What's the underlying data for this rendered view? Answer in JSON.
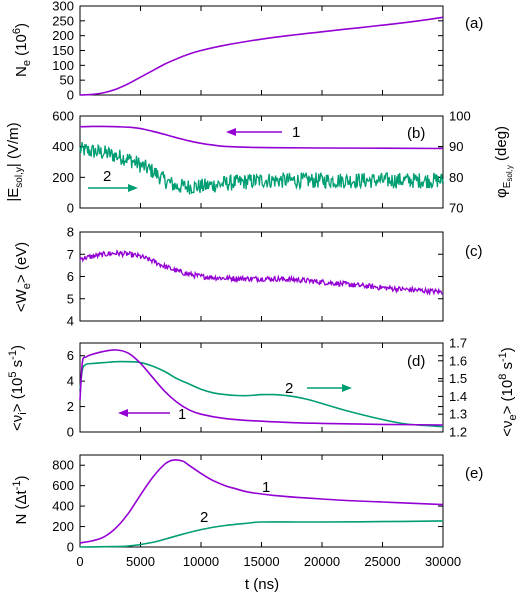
{
  "figure": {
    "xlabel": "t (ns)",
    "x_ticks": [
      "0",
      "5000",
      "10000",
      "15000",
      "20000",
      "25000",
      "30000"
    ],
    "colors": {
      "purple": "#9400d3",
      "green": "#009e73"
    }
  },
  "chart_data": [
    {
      "type": "line",
      "panel_label": "(a)",
      "ylabel_main": "N",
      "ylabel_sub": "e",
      "ylabel_tail": " (10",
      "ylabel_sup": "6",
      "ylabel_end": ")",
      "y_ticks": [
        "0",
        "50",
        "100",
        "150",
        "200",
        "250",
        "300"
      ],
      "ylim": [
        0,
        300
      ],
      "xlim": [
        0,
        30000
      ],
      "series": [
        {
          "x": [
            0,
            1000,
            2000,
            3000,
            4000,
            5000,
            6000,
            7000,
            8000,
            9000,
            10000,
            12000,
            14000,
            16000,
            18000,
            20000,
            22000,
            24000,
            26000,
            28000,
            30000
          ],
          "y": [
            0,
            2,
            8,
            20,
            38,
            60,
            82,
            104,
            122,
            138,
            150,
            168,
            182,
            194,
            204,
            213,
            222,
            231,
            240,
            250,
            262
          ]
        }
      ]
    },
    {
      "type": "line",
      "panel_label": "(b)",
      "ylabel_main": "|E",
      "ylabel_sub": "sol,y",
      "ylabel_end": "| (V/m)",
      "y_ticks": [
        "0",
        "200",
        "400",
        "600"
      ],
      "ylim": [
        0,
        600
      ],
      "right_ylabel_main": "φ",
      "right_ylabel_sub": "E",
      "right_ylabel_subsub": "sol,y",
      "right_ylabel_end": " (deg)",
      "right_ticks": [
        "70",
        "80",
        "90",
        "100"
      ],
      "right_ylim": [
        70,
        100
      ],
      "xlim": [
        0,
        30000
      ],
      "callouts": [
        "1",
        "2"
      ],
      "series": [
        {
          "axis": "left",
          "x": [
            0,
            1000,
            2000,
            3000,
            4000,
            5000,
            6000,
            7000,
            8000,
            9000,
            10000,
            11000,
            12000,
            14000,
            16000,
            20000,
            25000,
            30000
          ],
          "y": [
            530,
            532,
            532,
            530,
            527,
            518,
            500,
            480,
            458,
            438,
            422,
            410,
            402,
            396,
            393,
            391,
            390,
            388
          ]
        },
        {
          "axis": "right",
          "noisy": true,
          "amp": 2.6,
          "x": [
            0,
            2000,
            4000,
            5000,
            6000,
            7000,
            8000,
            10000,
            12000,
            15000,
            20000,
            25000,
            30000
          ],
          "y": [
            89,
            88,
            86,
            84,
            82,
            79,
            77,
            77,
            78,
            79,
            79,
            79,
            79
          ]
        }
      ]
    },
    {
      "type": "line",
      "panel_label": "(c)",
      "ylabel_main": "<W",
      "ylabel_sub": "e",
      "ylabel_end": "> (eV)",
      "y_ticks": [
        "4",
        "5",
        "6",
        "7",
        "8"
      ],
      "ylim": [
        4,
        8
      ],
      "xlim": [
        0,
        30000
      ],
      "series": [
        {
          "noisy": true,
          "amp": 0.12,
          "x": [
            0,
            1000,
            2000,
            3000,
            4000,
            5000,
            6000,
            7000,
            8000,
            9000,
            10000,
            12000,
            14000,
            16000,
            18000,
            20000,
            22000,
            24000,
            26000,
            28000,
            30000
          ],
          "y": [
            6.8,
            6.9,
            7.0,
            7.05,
            7.0,
            6.9,
            6.7,
            6.45,
            6.25,
            6.1,
            6.0,
            5.92,
            5.9,
            5.9,
            5.85,
            5.75,
            5.65,
            5.55,
            5.45,
            5.38,
            5.3
          ]
        }
      ]
    },
    {
      "type": "line",
      "panel_label": "(d)",
      "ylabel_main": "<ν",
      "ylabel_sub": "i",
      "ylabel_end": "> (10",
      "ylabel_sup": "5",
      "ylabel_tail2": " s",
      "ylabel_sup2": "-1",
      "ylabel_close": ")",
      "y_ticks": [
        "0",
        "2",
        "4",
        "6"
      ],
      "ylim": [
        0,
        7
      ],
      "right_ylabel_main": "<ν",
      "right_ylabel_sub": "e",
      "right_ylabel_end": "> (10",
      "right_ylabel_sup": "8",
      "right_ylabel_tail2": " s",
      "right_ylabel_sup2": "-1",
      "right_ylabel_close": ")",
      "right_ticks": [
        "1.2",
        "1.3",
        "1.4",
        "1.5",
        "1.6",
        "1.7"
      ],
      "right_ylim": [
        1.2,
        1.7
      ],
      "xlim": [
        0,
        30000
      ],
      "callouts": [
        "1",
        "2"
      ],
      "series": [
        {
          "axis": "left",
          "x": [
            0,
            200,
            500,
            1000,
            2000,
            3000,
            4000,
            5000,
            6000,
            7000,
            8000,
            9000,
            10000,
            12000,
            14000,
            16000,
            18000,
            20000,
            25000,
            30000
          ],
          "y": [
            2.5,
            5.5,
            5.9,
            6.1,
            6.35,
            6.45,
            6.2,
            5.4,
            4.3,
            3.2,
            2.35,
            1.75,
            1.4,
            1.05,
            0.9,
            0.8,
            0.72,
            0.68,
            0.6,
            0.55
          ]
        },
        {
          "axis": "right",
          "x": [
            0,
            200,
            500,
            1000,
            2000,
            3000,
            4000,
            5000,
            6000,
            7000,
            8000,
            9000,
            10000,
            11000,
            12000,
            13000,
            14000,
            15000,
            16000,
            17000,
            18000,
            19000,
            20000,
            22000,
            25000,
            27000,
            30000
          ],
          "y": [
            1.43,
            1.55,
            1.58,
            1.585,
            1.59,
            1.595,
            1.595,
            1.59,
            1.57,
            1.54,
            1.5,
            1.47,
            1.44,
            1.42,
            1.41,
            1.405,
            1.405,
            1.41,
            1.41,
            1.405,
            1.395,
            1.38,
            1.36,
            1.32,
            1.27,
            1.245,
            1.23
          ]
        }
      ]
    },
    {
      "type": "line",
      "panel_label": "(e)",
      "ylabel_main": "N (Δt",
      "ylabel_sup": "-1",
      "ylabel_end": ")",
      "y_ticks": [
        "0",
        "200",
        "400",
        "600",
        "800"
      ],
      "ylim": [
        0,
        900
      ],
      "xlim": [
        0,
        30000
      ],
      "callouts": [
        "1",
        "2"
      ],
      "series": [
        {
          "x": [
            0,
            1000,
            2000,
            3000,
            4000,
            5000,
            6000,
            7000,
            7700,
            8500,
            9000,
            10000,
            11000,
            12000,
            13000,
            14000,
            16000,
            18000,
            20000,
            22000,
            25000,
            28000,
            30000
          ],
          "y": [
            40,
            60,
            100,
            190,
            330,
            510,
            680,
            810,
            850,
            840,
            800,
            720,
            650,
            600,
            565,
            535,
            505,
            485,
            470,
            455,
            440,
            425,
            415
          ]
        },
        {
          "x": [
            0,
            2000,
            4000,
            6000,
            8000,
            10000,
            12000,
            14000,
            15000,
            18000,
            20000,
            25000,
            30000
          ],
          "y": [
            0,
            3,
            10,
            45,
            110,
            170,
            210,
            235,
            245,
            245,
            245,
            248,
            255
          ]
        }
      ]
    }
  ]
}
